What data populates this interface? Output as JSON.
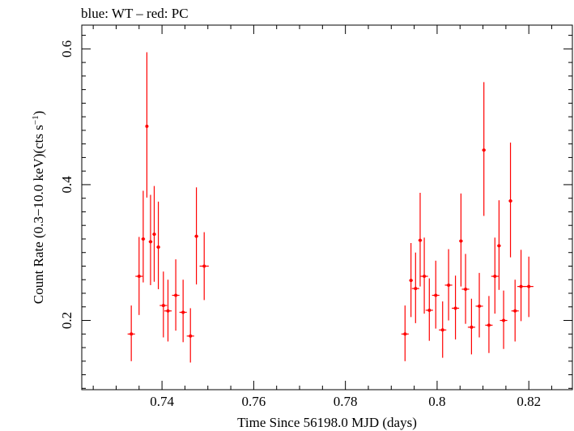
{
  "chart_data": {
    "type": "scatter",
    "title": "blue: WT – red: PC",
    "xlabel": "Time Since 56198.0 MJD (days)",
    "ylabel_main": "Count Rate (0.3−10.0 keV)(cts s",
    "ylabel_sup": "−1",
    "ylabel_tail": ")",
    "xlim": [
      0.7225,
      0.8295
    ],
    "ylim": [
      0.098,
      0.635
    ],
    "x_ticks": [
      0.74,
      0.76,
      0.78,
      0.8,
      0.82
    ],
    "x_tick_labels": [
      "0.74",
      "0.76",
      "0.78",
      "0.8",
      "0.82"
    ],
    "y_ticks": [
      0.2,
      0.4,
      0.6
    ],
    "y_tick_labels": [
      "0.2",
      "0.4",
      "0.6"
    ],
    "grid": false,
    "series": [
      {
        "color": "#ff0000",
        "points": [
          {
            "x": 0.7333,
            "y": 0.18,
            "xerr": 0.0008,
            "ylo": 0.14,
            "yhi": 0.222
          },
          {
            "x": 0.735,
            "y": 0.265,
            "xerr": 0.0008,
            "ylo": 0.208,
            "yhi": 0.323
          },
          {
            "x": 0.7359,
            "y": 0.32,
            "xerr": 0.0004,
            "ylo": 0.256,
            "yhi": 0.391
          },
          {
            "x": 0.7367,
            "y": 0.486,
            "xerr": 0.0003,
            "ylo": 0.381,
            "yhi": 0.595
          },
          {
            "x": 0.7375,
            "y": 0.316,
            "xerr": 0.0004,
            "ylo": 0.252,
            "yhi": 0.385
          },
          {
            "x": 0.7383,
            "y": 0.327,
            "xerr": 0.0004,
            "ylo": 0.257,
            "yhi": 0.398
          },
          {
            "x": 0.7392,
            "y": 0.308,
            "xerr": 0.0004,
            "ylo": 0.246,
            "yhi": 0.375
          },
          {
            "x": 0.7403,
            "y": 0.222,
            "xerr": 0.0008,
            "ylo": 0.175,
            "yhi": 0.272
          },
          {
            "x": 0.7413,
            "y": 0.214,
            "xerr": 0.0008,
            "ylo": 0.169,
            "yhi": 0.26
          },
          {
            "x": 0.743,
            "y": 0.237,
            "xerr": 0.0008,
            "ylo": 0.185,
            "yhi": 0.29
          },
          {
            "x": 0.7446,
            "y": 0.212,
            "xerr": 0.0008,
            "ylo": 0.168,
            "yhi": 0.26
          },
          {
            "x": 0.7462,
            "y": 0.177,
            "xerr": 0.0008,
            "ylo": 0.138,
            "yhi": 0.218
          },
          {
            "x": 0.7475,
            "y": 0.324,
            "xerr": 0.0004,
            "ylo": 0.253,
            "yhi": 0.396
          },
          {
            "x": 0.7492,
            "y": 0.28,
            "xerr": 0.001,
            "ylo": 0.23,
            "yhi": 0.33
          },
          {
            "x": 0.793,
            "y": 0.18,
            "xerr": 0.0008,
            "ylo": 0.14,
            "yhi": 0.222
          },
          {
            "x": 0.7943,
            "y": 0.259,
            "xerr": 0.0004,
            "ylo": 0.205,
            "yhi": 0.314
          },
          {
            "x": 0.7953,
            "y": 0.247,
            "xerr": 0.0008,
            "ylo": 0.196,
            "yhi": 0.3
          },
          {
            "x": 0.7963,
            "y": 0.318,
            "xerr": 0.0004,
            "ylo": 0.25,
            "yhi": 0.388
          },
          {
            "x": 0.7972,
            "y": 0.265,
            "xerr": 0.0008,
            "ylo": 0.21,
            "yhi": 0.322
          },
          {
            "x": 0.7983,
            "y": 0.215,
            "xerr": 0.0008,
            "ylo": 0.17,
            "yhi": 0.262
          },
          {
            "x": 0.7997,
            "y": 0.237,
            "xerr": 0.0008,
            "ylo": 0.188,
            "yhi": 0.288
          },
          {
            "x": 0.8012,
            "y": 0.186,
            "xerr": 0.0008,
            "ylo": 0.145,
            "yhi": 0.228
          },
          {
            "x": 0.8025,
            "y": 0.252,
            "xerr": 0.0008,
            "ylo": 0.2,
            "yhi": 0.305
          },
          {
            "x": 0.804,
            "y": 0.218,
            "xerr": 0.0008,
            "ylo": 0.172,
            "yhi": 0.266
          },
          {
            "x": 0.8052,
            "y": 0.317,
            "xerr": 0.0004,
            "ylo": 0.25,
            "yhi": 0.387
          },
          {
            "x": 0.8062,
            "y": 0.246,
            "xerr": 0.0008,
            "ylo": 0.195,
            "yhi": 0.298
          },
          {
            "x": 0.8075,
            "y": 0.19,
            "xerr": 0.0008,
            "ylo": 0.15,
            "yhi": 0.232
          },
          {
            "x": 0.8092,
            "y": 0.221,
            "xerr": 0.0008,
            "ylo": 0.175,
            "yhi": 0.27
          },
          {
            "x": 0.8102,
            "y": 0.451,
            "xerr": 0.0004,
            "ylo": 0.354,
            "yhi": 0.551
          },
          {
            "x": 0.8113,
            "y": 0.193,
            "xerr": 0.0008,
            "ylo": 0.152,
            "yhi": 0.236
          },
          {
            "x": 0.8126,
            "y": 0.265,
            "xerr": 0.0008,
            "ylo": 0.21,
            "yhi": 0.322
          },
          {
            "x": 0.8135,
            "y": 0.31,
            "xerr": 0.0004,
            "ylo": 0.245,
            "yhi": 0.377
          },
          {
            "x": 0.8145,
            "y": 0.2,
            "xerr": 0.0008,
            "ylo": 0.158,
            "yhi": 0.244
          },
          {
            "x": 0.816,
            "y": 0.376,
            "xerr": 0.0004,
            "ylo": 0.293,
            "yhi": 0.462
          },
          {
            "x": 0.817,
            "y": 0.214,
            "xerr": 0.0008,
            "ylo": 0.169,
            "yhi": 0.26
          },
          {
            "x": 0.8183,
            "y": 0.25,
            "xerr": 0.0008,
            "ylo": 0.199,
            "yhi": 0.304
          },
          {
            "x": 0.82,
            "y": 0.25,
            "xerr": 0.001,
            "ylo": 0.205,
            "yhi": 0.294
          }
        ]
      }
    ]
  }
}
